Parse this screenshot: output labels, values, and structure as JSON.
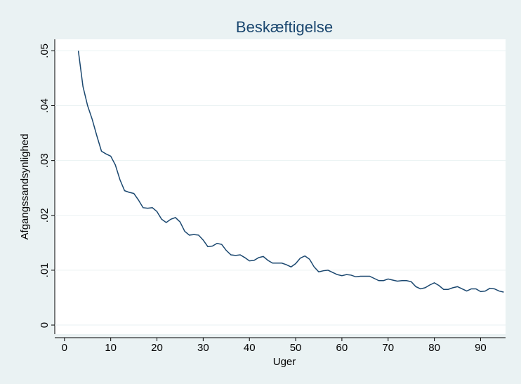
{
  "chart_data": {
    "type": "line",
    "title": "Beskæftigelse",
    "x_label": "Uger",
    "y_label": "Afgangssandsynlighed",
    "x": [
      3,
      4,
      5,
      6,
      7,
      8,
      9,
      10,
      11,
      12,
      13,
      14,
      15,
      16,
      17,
      18,
      19,
      20,
      21,
      22,
      23,
      24,
      25,
      26,
      27,
      28,
      29,
      30,
      31,
      32,
      33,
      34,
      35,
      36,
      37,
      38,
      39,
      40,
      41,
      42,
      43,
      44,
      45,
      46,
      47,
      48,
      49,
      50,
      51,
      52,
      53,
      54,
      55,
      56,
      57,
      58,
      59,
      60,
      61,
      62,
      63,
      64,
      65,
      66,
      67,
      68,
      69,
      70,
      71,
      72,
      73,
      74,
      75,
      76,
      77,
      78,
      79,
      80,
      81,
      82,
      83,
      84,
      85,
      86,
      87,
      88,
      89,
      90,
      91,
      92,
      93,
      94,
      95
    ],
    "series": [
      {
        "name": "Afgangssandsynlighed",
        "color": "#1a476f",
        "values": [
          0.05,
          0.0435,
          0.04,
          0.0375,
          0.0345,
          0.0317,
          0.0312,
          0.0308,
          0.0292,
          0.0265,
          0.0245,
          0.0242,
          0.024,
          0.0228,
          0.0214,
          0.0213,
          0.0214,
          0.0207,
          0.0193,
          0.0187,
          0.0193,
          0.0196,
          0.0188,
          0.0171,
          0.0164,
          0.0165,
          0.0164,
          0.0155,
          0.0143,
          0.0144,
          0.0149,
          0.0147,
          0.0136,
          0.0128,
          0.0127,
          0.0128,
          0.0123,
          0.0117,
          0.0118,
          0.0123,
          0.0125,
          0.0118,
          0.0113,
          0.0113,
          0.0113,
          0.011,
          0.0106,
          0.0112,
          0.0122,
          0.0126,
          0.012,
          0.0106,
          0.0097,
          0.0099,
          0.01,
          0.0096,
          0.0092,
          0.009,
          0.0092,
          0.0091,
          0.0088,
          0.0089,
          0.0089,
          0.0089,
          0.0085,
          0.0081,
          0.0081,
          0.0084,
          0.0082,
          0.008,
          0.0081,
          0.0081,
          0.0079,
          0.007,
          0.0066,
          0.0068,
          0.0073,
          0.0077,
          0.0072,
          0.0065,
          0.0065,
          0.0068,
          0.007,
          0.0066,
          0.0062,
          0.0066,
          0.0066,
          0.0061,
          0.0062,
          0.0067,
          0.0066,
          0.0062,
          0.006
        ]
      }
    ],
    "xlim": [
      -2.1,
      95.4
    ],
    "xticks": [
      0,
      10,
      20,
      30,
      40,
      50,
      60,
      70,
      80,
      90
    ],
    "ylim": [
      -0.00166,
      0.0521
    ],
    "yticks": [
      0,
      {
        "value": 0.01,
        "label": ".01"
      },
      {
        "value": 0.02,
        "label": ".02"
      },
      {
        "value": 0.03,
        "label": ".03"
      },
      {
        "value": 0.04,
        "label": ".04"
      },
      {
        "value": 0.05,
        "label": ".05"
      }
    ],
    "grid": true
  }
}
